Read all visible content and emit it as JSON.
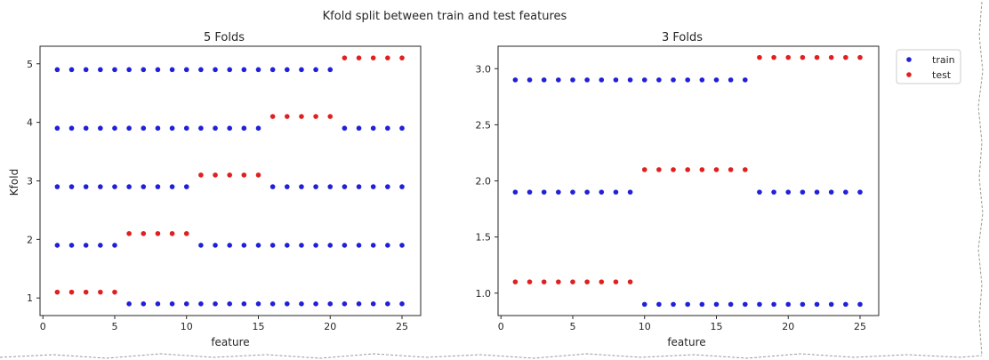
{
  "figure": {
    "suptitle": "Kfold split between train and test features"
  },
  "colors": {
    "train": "#2020d8",
    "test": "#e02020"
  },
  "chart_data": [
    {
      "type": "scatter",
      "title": "5 Folds",
      "xlabel": "feature",
      "ylabel": "Kfold",
      "xlim": [
        -0.2,
        26.3
      ],
      "ylim": [
        0.7,
        5.3
      ],
      "xticks": [
        0,
        5,
        10,
        15,
        20,
        25
      ],
      "yticks": [
        1,
        2,
        3,
        4,
        5
      ],
      "ytick_labels": [
        "1",
        "2",
        "3",
        "4",
        "5"
      ],
      "grid": false,
      "series": [
        {
          "name": "train",
          "points": [
            [
              6,
              0.9
            ],
            [
              7,
              0.9
            ],
            [
              8,
              0.9
            ],
            [
              9,
              0.9
            ],
            [
              10,
              0.9
            ],
            [
              11,
              0.9
            ],
            [
              12,
              0.9
            ],
            [
              13,
              0.9
            ],
            [
              14,
              0.9
            ],
            [
              15,
              0.9
            ],
            [
              16,
              0.9
            ],
            [
              17,
              0.9
            ],
            [
              18,
              0.9
            ],
            [
              19,
              0.9
            ],
            [
              20,
              0.9
            ],
            [
              21,
              0.9
            ],
            [
              22,
              0.9
            ],
            [
              23,
              0.9
            ],
            [
              24,
              0.9
            ],
            [
              25,
              0.9
            ],
            [
              1,
              1.9
            ],
            [
              2,
              1.9
            ],
            [
              3,
              1.9
            ],
            [
              4,
              1.9
            ],
            [
              5,
              1.9
            ],
            [
              11,
              1.9
            ],
            [
              12,
              1.9
            ],
            [
              13,
              1.9
            ],
            [
              14,
              1.9
            ],
            [
              15,
              1.9
            ],
            [
              16,
              1.9
            ],
            [
              17,
              1.9
            ],
            [
              18,
              1.9
            ],
            [
              19,
              1.9
            ],
            [
              20,
              1.9
            ],
            [
              21,
              1.9
            ],
            [
              22,
              1.9
            ],
            [
              23,
              1.9
            ],
            [
              24,
              1.9
            ],
            [
              25,
              1.9
            ],
            [
              1,
              2.9
            ],
            [
              2,
              2.9
            ],
            [
              3,
              2.9
            ],
            [
              4,
              2.9
            ],
            [
              5,
              2.9
            ],
            [
              6,
              2.9
            ],
            [
              7,
              2.9
            ],
            [
              8,
              2.9
            ],
            [
              9,
              2.9
            ],
            [
              10,
              2.9
            ],
            [
              16,
              2.9
            ],
            [
              17,
              2.9
            ],
            [
              18,
              2.9
            ],
            [
              19,
              2.9
            ],
            [
              20,
              2.9
            ],
            [
              21,
              2.9
            ],
            [
              22,
              2.9
            ],
            [
              23,
              2.9
            ],
            [
              24,
              2.9
            ],
            [
              25,
              2.9
            ],
            [
              1,
              3.9
            ],
            [
              2,
              3.9
            ],
            [
              3,
              3.9
            ],
            [
              4,
              3.9
            ],
            [
              5,
              3.9
            ],
            [
              6,
              3.9
            ],
            [
              7,
              3.9
            ],
            [
              8,
              3.9
            ],
            [
              9,
              3.9
            ],
            [
              10,
              3.9
            ],
            [
              11,
              3.9
            ],
            [
              12,
              3.9
            ],
            [
              13,
              3.9
            ],
            [
              14,
              3.9
            ],
            [
              15,
              3.9
            ],
            [
              21,
              3.9
            ],
            [
              22,
              3.9
            ],
            [
              23,
              3.9
            ],
            [
              24,
              3.9
            ],
            [
              25,
              3.9
            ],
            [
              1,
              4.9
            ],
            [
              2,
              4.9
            ],
            [
              3,
              4.9
            ],
            [
              4,
              4.9
            ],
            [
              5,
              4.9
            ],
            [
              6,
              4.9
            ],
            [
              7,
              4.9
            ],
            [
              8,
              4.9
            ],
            [
              9,
              4.9
            ],
            [
              10,
              4.9
            ],
            [
              11,
              4.9
            ],
            [
              12,
              4.9
            ],
            [
              13,
              4.9
            ],
            [
              14,
              4.9
            ],
            [
              15,
              4.9
            ],
            [
              16,
              4.9
            ],
            [
              17,
              4.9
            ],
            [
              18,
              4.9
            ],
            [
              19,
              4.9
            ],
            [
              20,
              4.9
            ]
          ]
        },
        {
          "name": "test",
          "points": [
            [
              1,
              1.1
            ],
            [
              2,
              1.1
            ],
            [
              3,
              1.1
            ],
            [
              4,
              1.1
            ],
            [
              5,
              1.1
            ],
            [
              6,
              2.1
            ],
            [
              7,
              2.1
            ],
            [
              8,
              2.1
            ],
            [
              9,
              2.1
            ],
            [
              10,
              2.1
            ],
            [
              11,
              3.1
            ],
            [
              12,
              3.1
            ],
            [
              13,
              3.1
            ],
            [
              14,
              3.1
            ],
            [
              15,
              3.1
            ],
            [
              16,
              4.1
            ],
            [
              17,
              4.1
            ],
            [
              18,
              4.1
            ],
            [
              19,
              4.1
            ],
            [
              20,
              4.1
            ],
            [
              21,
              5.1
            ],
            [
              22,
              5.1
            ],
            [
              23,
              5.1
            ],
            [
              24,
              5.1
            ],
            [
              25,
              5.1
            ]
          ]
        }
      ]
    },
    {
      "type": "scatter",
      "title": "3 Folds",
      "xlabel": "feature",
      "ylabel": "",
      "xlim": [
        -0.2,
        26.3
      ],
      "ylim": [
        0.8,
        3.2
      ],
      "xticks": [
        0,
        5,
        10,
        15,
        20,
        25
      ],
      "yticks": [
        1.0,
        1.5,
        2.0,
        2.5,
        3.0
      ],
      "ytick_labels": [
        "1.0",
        "1.5",
        "2.0",
        "2.5",
        "3.0"
      ],
      "grid": false,
      "legend": {
        "placement": "outside-top-right",
        "entries": [
          "train",
          "test"
        ]
      },
      "series": [
        {
          "name": "train",
          "points": [
            [
              10,
              0.9
            ],
            [
              11,
              0.9
            ],
            [
              12,
              0.9
            ],
            [
              13,
              0.9
            ],
            [
              14,
              0.9
            ],
            [
              15,
              0.9
            ],
            [
              16,
              0.9
            ],
            [
              17,
              0.9
            ],
            [
              18,
              0.9
            ],
            [
              19,
              0.9
            ],
            [
              20,
              0.9
            ],
            [
              21,
              0.9
            ],
            [
              22,
              0.9
            ],
            [
              23,
              0.9
            ],
            [
              24,
              0.9
            ],
            [
              25,
              0.9
            ],
            [
              1,
              1.9
            ],
            [
              2,
              1.9
            ],
            [
              3,
              1.9
            ],
            [
              4,
              1.9
            ],
            [
              5,
              1.9
            ],
            [
              6,
              1.9
            ],
            [
              7,
              1.9
            ],
            [
              8,
              1.9
            ],
            [
              9,
              1.9
            ],
            [
              18,
              1.9
            ],
            [
              19,
              1.9
            ],
            [
              20,
              1.9
            ],
            [
              21,
              1.9
            ],
            [
              22,
              1.9
            ],
            [
              23,
              1.9
            ],
            [
              24,
              1.9
            ],
            [
              25,
              1.9
            ],
            [
              1,
              2.9
            ],
            [
              2,
              2.9
            ],
            [
              3,
              2.9
            ],
            [
              4,
              2.9
            ],
            [
              5,
              2.9
            ],
            [
              6,
              2.9
            ],
            [
              7,
              2.9
            ],
            [
              8,
              2.9
            ],
            [
              9,
              2.9
            ],
            [
              10,
              2.9
            ],
            [
              11,
              2.9
            ],
            [
              12,
              2.9
            ],
            [
              13,
              2.9
            ],
            [
              14,
              2.9
            ],
            [
              15,
              2.9
            ],
            [
              16,
              2.9
            ],
            [
              17,
              2.9
            ]
          ]
        },
        {
          "name": "test",
          "points": [
            [
              1,
              1.1
            ],
            [
              2,
              1.1
            ],
            [
              3,
              1.1
            ],
            [
              4,
              1.1
            ],
            [
              5,
              1.1
            ],
            [
              6,
              1.1
            ],
            [
              7,
              1.1
            ],
            [
              8,
              1.1
            ],
            [
              9,
              1.1
            ],
            [
              10,
              2.1
            ],
            [
              11,
              2.1
            ],
            [
              12,
              2.1
            ],
            [
              13,
              2.1
            ],
            [
              14,
              2.1
            ],
            [
              15,
              2.1
            ],
            [
              16,
              2.1
            ],
            [
              17,
              2.1
            ],
            [
              18,
              3.1
            ],
            [
              19,
              3.1
            ],
            [
              20,
              3.1
            ],
            [
              21,
              3.1
            ],
            [
              22,
              3.1
            ],
            [
              23,
              3.1
            ],
            [
              24,
              3.1
            ],
            [
              25,
              3.1
            ]
          ]
        }
      ]
    }
  ]
}
